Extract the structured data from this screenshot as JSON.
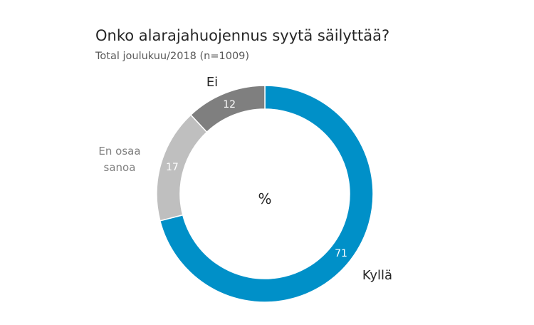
{
  "chart_data": {
    "type": "pie",
    "title": "Onko alarajahuojennus syytä säilyttää?",
    "subtitle": "Total joulukuu/2018 (n=1009)",
    "center_label": "%",
    "slices": [
      {
        "label": "Kyllä",
        "value": 71,
        "value_label": "71",
        "color": "#0090c8",
        "label_color": "#262626",
        "label_lines": [
          "Kyllä"
        ]
      },
      {
        "label": "En osaa sanoa",
        "value": 17,
        "value_label": "17",
        "color": "#bfbfbf",
        "label_color": "#7f7f7f",
        "label_lines": [
          "En osaa",
          "sanoa"
        ]
      },
      {
        "label": "Ei",
        "value": 12,
        "value_label": "12",
        "color": "#7f7f7f",
        "label_color": "#262626",
        "label_lines": [
          "Ei"
        ]
      }
    ],
    "start": "12 o'clock",
    "direction": "clockwise",
    "legend": "none"
  }
}
